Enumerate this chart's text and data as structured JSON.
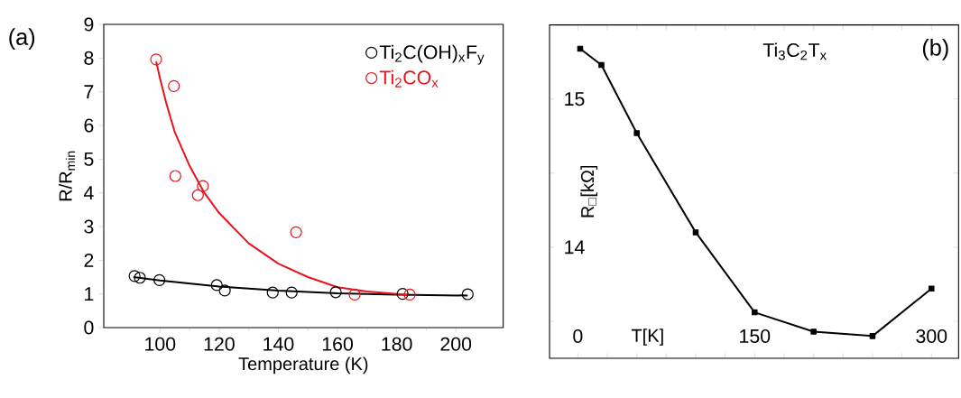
{
  "chart_data": [
    {
      "type": "scatter",
      "xlabel": "Temperature (K)",
      "ylabel": "R/R$_{min}$",
      "xlim": [
        81,
        216
      ],
      "ylim": [
        0,
        9
      ],
      "xticks": [
        100,
        120,
        140,
        160,
        180,
        200
      ],
      "yticks": [
        0,
        1,
        2,
        3,
        4,
        5,
        6,
        7,
        8,
        9
      ],
      "legend": "top right",
      "marker": "circle",
      "annotations": [
        "(a)"
      ],
      "series": [
        {
          "name": "Ti$_{2}$C(OH)$_{x}$F$_{y}$",
          "color": "#000000",
          "type": "scatter",
          "x": [
            91.4,
            93.2,
            99.8,
            119.2,
            121.9,
            138.1,
            144.5,
            159.4,
            182,
            204
          ],
          "values": [
            1.53,
            1.48,
            1.41,
            1.26,
            1.1,
            1.04,
            1.04,
            1.05,
            1.0,
            0.99
          ]
        },
        {
          "color": "#000000",
          "type": "line",
          "marker": "none",
          "x": [
            91,
            100,
            120,
            140,
            160,
            180,
            204
          ],
          "values": [
            1.5,
            1.4,
            1.22,
            1.1,
            1.02,
            0.98,
            0.95
          ]
        },
        {
          "name": "Ti$_{2}$CO$_{x}$",
          "color": "#e8141c",
          "type": "scatter",
          "x": [
            98.7,
            104.7,
            105.2,
            112.8,
            114.5,
            146,
            165.8,
            184.4
          ],
          "values": [
            7.96,
            7.17,
            4.5,
            3.93,
            4.2,
            2.83,
            0.98,
            0.98
          ]
        },
        {
          "color": "#e8141c",
          "type": "line",
          "marker": "none",
          "x": [
            98.7,
            100,
            102,
            105,
            110,
            115,
            120,
            130,
            140,
            150,
            160,
            170,
            184
          ],
          "values": [
            7.9,
            7.4,
            6.7,
            5.8,
            4.8,
            4.0,
            3.4,
            2.5,
            1.9,
            1.5,
            1.2,
            1.07,
            0.97
          ]
        }
      ]
    },
    {
      "type": "line",
      "title": "Ti$_{3}$C$_{2}$T$_{x}$",
      "xlabel": "T[K]",
      "ylabel": "R$_{□}$[kΩ]",
      "xlim": [
        -24,
        323
      ],
      "ylim": [
        13.25,
        15.5
      ],
      "marker": "square",
      "annotations": [
        "(b)"
      ],
      "xticks": [
        0,
        {
          "value": 25,
          "label": null
        },
        {
          "value": 50,
          "label": null
        },
        {
          "value": 75,
          "label": null
        },
        {
          "value": 100,
          "label": null
        },
        {
          "value": 125,
          "label": null
        },
        150,
        {
          "value": 175,
          "label": null
        },
        {
          "value": 200,
          "label": null
        },
        {
          "value": 225,
          "label": null
        },
        {
          "value": 250,
          "label": null
        },
        {
          "value": 275,
          "label": null
        },
        300
      ],
      "yticks": [
        {
          "value": 13.5,
          "label": null
        },
        14,
        {
          "value": 14.5,
          "label": null
        },
        15
      ],
      "x": [
        2,
        20,
        50,
        100,
        150,
        200,
        250,
        300
      ],
      "series": [
        {
          "color": "#000000",
          "values": [
            15.34,
            15.23,
            14.77,
            14.1,
            13.56,
            13.43,
            13.4,
            13.72
          ]
        }
      ]
    }
  ]
}
